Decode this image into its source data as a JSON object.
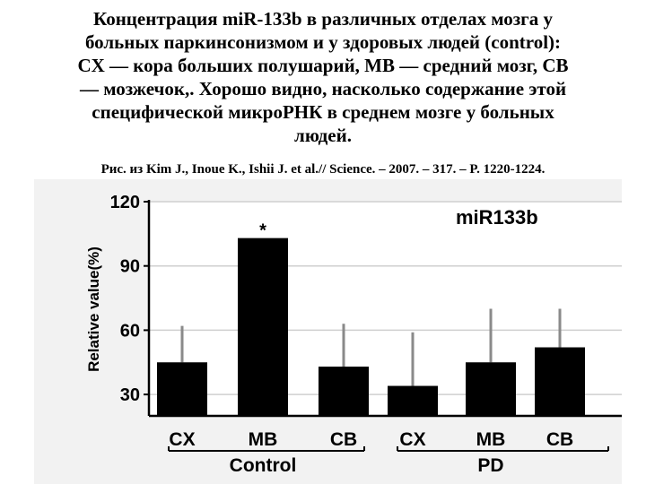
{
  "caption": {
    "lines": [
      "Концентрация miR-133b в различных отделах мозга у",
      "больных паркинсонизмом и у здоровых людей (control):",
      "CX — кора больших полушарий, MB — средний мозг, CB",
      "— мозжечок,. Хорошо видно, насколько содержание этой",
      "специфической микроРНК в среднем мозге у больных",
      "людей."
    ]
  },
  "source": "Рис. из Kim J., Inoue K., Ishii J. et al.// Science. – 2007. – 317. – P. 1220-1224.",
  "chart_data": {
    "type": "bar",
    "title": "miR133b",
    "ylabel": "Relative value(%)",
    "xlabel": "",
    "ylim": [
      20,
      120
    ],
    "yticks": [
      30,
      60,
      90,
      120
    ],
    "categories": [
      "CX",
      "MB",
      "CB",
      "CX",
      "MB",
      "CB"
    ],
    "groups": [
      {
        "label": "Control",
        "categories": [
          "CX",
          "MB",
          "CB"
        ]
      },
      {
        "label": "PD",
        "categories": [
          "CX",
          "MB",
          "CB"
        ]
      }
    ],
    "values": [
      45,
      103,
      43,
      34,
      45,
      52
    ],
    "error_upper": [
      62,
      103,
      63,
      59,
      70,
      70
    ],
    "annotations": [
      {
        "category_index": 1,
        "text": "*"
      }
    ],
    "grid": true,
    "bar_color": "#000000",
    "grid_color": "#cfcfcf"
  }
}
